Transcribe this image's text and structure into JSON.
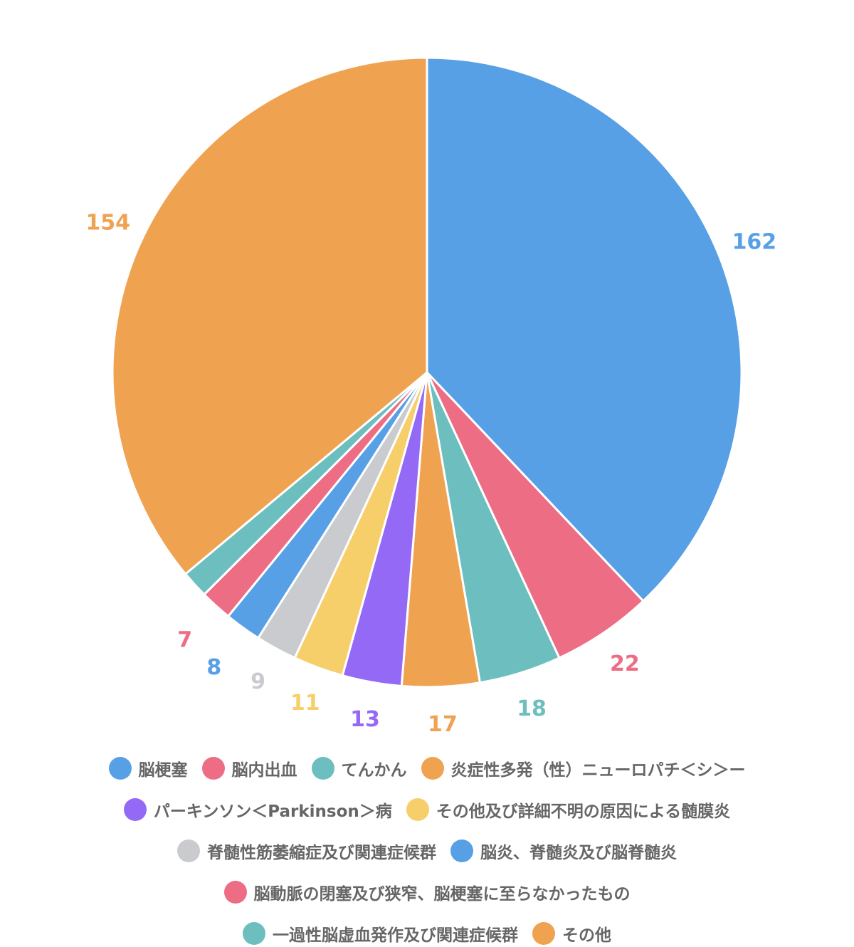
{
  "chart_data": {
    "type": "pie",
    "categories": [
      "脳梗塞",
      "脳内出血",
      "てんかん",
      "炎症性多発（性）ニューロパチ＜シ＞ー",
      "パーキンソン＜Parkinson＞病",
      "その他及び詳細不明の原因による髄膜炎",
      "脊髄性筋萎縮症及び関連症候群",
      "脳炎、脊髄炎及び脳脊髄炎",
      "脳動脈の閉塞及び狭窄、脳梗塞に至らなかったもの",
      "一過性脳虚血発作及び関連症候群",
      "その他"
    ],
    "values": [
      162,
      22,
      18,
      17,
      13,
      11,
      9,
      8,
      7,
      6,
      154
    ],
    "data_labels": [
      "162",
      "22",
      "18",
      "17",
      "13",
      "11",
      "9",
      "8",
      "7",
      "",
      "154"
    ],
    "colors": [
      "#57A0E5",
      "#ED6D85",
      "#6CBEBF",
      "#EFA350",
      "#9469F6",
      "#F6CF6B",
      "#C9CBCF",
      "#57A0E5",
      "#ED6D85",
      "#6CBEBF",
      "#EFA350"
    ],
    "legend_position": "bottom"
  }
}
